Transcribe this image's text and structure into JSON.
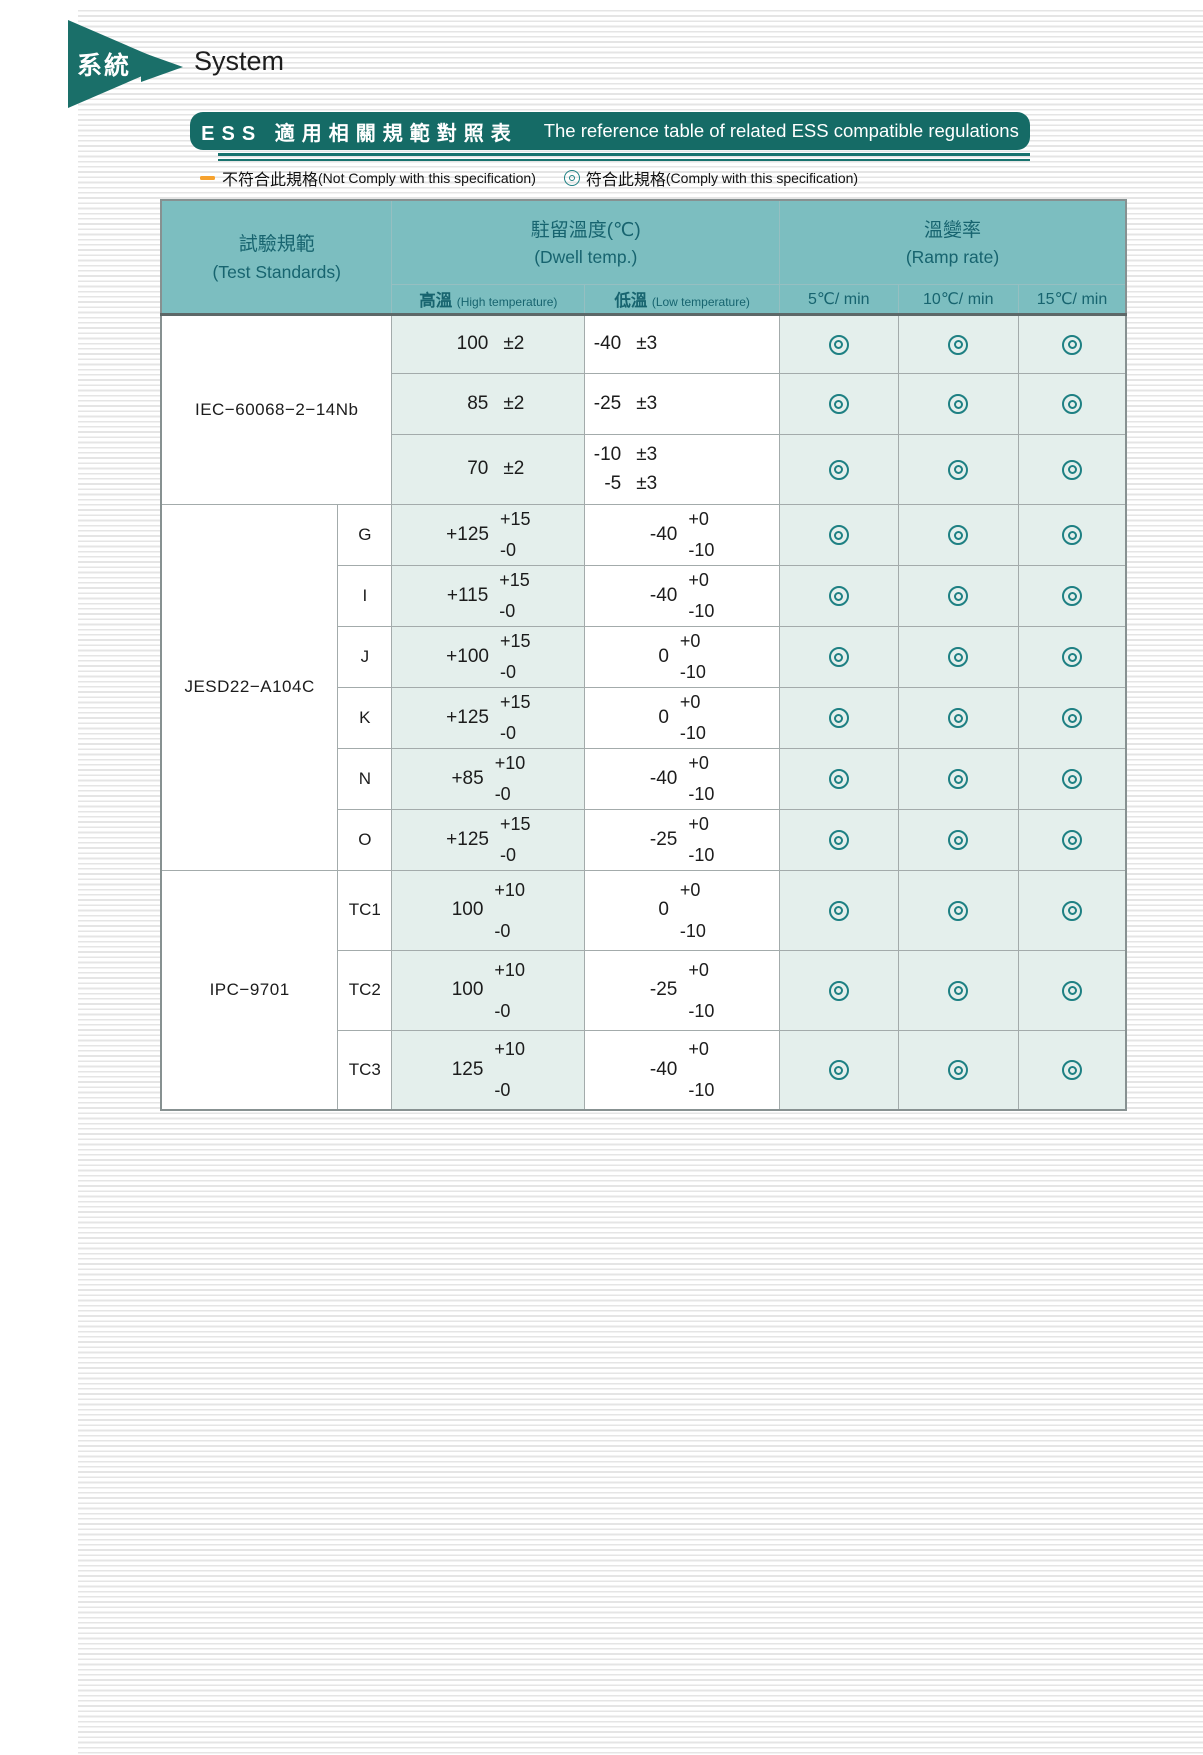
{
  "page": {
    "section_tab": {
      "zh": "系統",
      "en": "System"
    },
    "banner": {
      "zh": "ESS 適用相關規範對照表",
      "en": "The reference table of related ESS compatible regulations"
    },
    "legend": {
      "not_comply": {
        "symbol": "—",
        "zh": "不符合此規格",
        "en": "(Not Comply with this specification)"
      },
      "comply": {
        "symbol": "◎",
        "zh": "符合此規格",
        "en": "(Comply with this specification)"
      }
    },
    "colors": {
      "teal_dark": "#156b66",
      "teal_header_cell": "#7cbec0",
      "cell_green": "#e4efec",
      "circle_teal": "#1e8083",
      "legend_orange": "#f6a22e"
    }
  },
  "table": {
    "header": {
      "test_standards_zh": "試驗規範",
      "test_standards_en": "(Test Standards)",
      "dwell_zh": "駐留溫度(℃)",
      "dwell_en": "(Dwell temp.)",
      "ramp_zh": "溫變率",
      "ramp_en": "(Ramp rate)",
      "high_zh": "高溫",
      "high_en": "(High temperature)",
      "low_zh": "低溫",
      "low_en": "(Low temperature)",
      "ramp_cols": [
        "5℃/ min",
        "10℃/ min",
        "15℃/ min"
      ]
    },
    "groups": [
      {
        "standard": "IEC−60068−2−14Nb",
        "rows": [
          {
            "high": {
              "value": "100",
              "tol": "±2"
            },
            "low": {
              "entries": [
                {
                  "value": "-40",
                  "tol": "±3"
                }
              ]
            },
            "marks": [
              "◎",
              "◎",
              "◎"
            ]
          },
          {
            "high": {
              "value": "85",
              "tol": "±2"
            },
            "low": {
              "entries": [
                {
                  "value": "-25",
                  "tol": "±3"
                }
              ]
            },
            "marks": [
              "◎",
              "◎",
              "◎"
            ]
          },
          {
            "high": {
              "value": "70",
              "tol": "±2"
            },
            "low": {
              "entries": [
                {
                  "value": "-10",
                  "tol": "±3"
                },
                {
                  "value": "-5",
                  "tol": "±3"
                }
              ]
            },
            "marks": [
              "◎",
              "◎",
              "◎"
            ]
          }
        ]
      },
      {
        "standard": "JESD22−A104C",
        "rows": [
          {
            "variant": "G",
            "high": {
              "value": "+125",
              "plus": "+15",
              "minus": "-0"
            },
            "low": {
              "value": "-40",
              "plus": "+0",
              "minus": "-10"
            },
            "marks": [
              "◎",
              "◎",
              "◎"
            ]
          },
          {
            "variant": "I",
            "high": {
              "value": "+115",
              "plus": "+15",
              "minus": "-0"
            },
            "low": {
              "value": "-40",
              "plus": "+0",
              "minus": "-10"
            },
            "marks": [
              "◎",
              "◎",
              "◎"
            ]
          },
          {
            "variant": "J",
            "high": {
              "value": "+100",
              "plus": "+15",
              "minus": "-0"
            },
            "low": {
              "value": "0",
              "plus": "+0",
              "minus": "-10"
            },
            "marks": [
              "◎",
              "◎",
              "◎"
            ]
          },
          {
            "variant": "K",
            "high": {
              "value": "+125",
              "plus": "+15",
              "minus": "-0"
            },
            "low": {
              "value": "0",
              "plus": "+0",
              "minus": "-10"
            },
            "marks": [
              "◎",
              "◎",
              "◎"
            ]
          },
          {
            "variant": "N",
            "high": {
              "value": "+85",
              "plus": "+10",
              "minus": "-0"
            },
            "low": {
              "value": "-40",
              "plus": "+0",
              "minus": "-10"
            },
            "marks": [
              "◎",
              "◎",
              "◎"
            ]
          },
          {
            "variant": "O",
            "high": {
              "value": "+125",
              "plus": "+15",
              "minus": "-0"
            },
            "low": {
              "value": "-25",
              "plus": "+0",
              "minus": "-10"
            },
            "marks": [
              "◎",
              "◎",
              "◎"
            ]
          }
        ]
      },
      {
        "standard": "IPC−9701",
        "rows": [
          {
            "variant": "TC1",
            "high": {
              "value": "100",
              "plus": "+10",
              "minus": "-0"
            },
            "low": {
              "value": "0",
              "plus": "+0",
              "minus": "-10"
            },
            "marks": [
              "◎",
              "◎",
              "◎"
            ]
          },
          {
            "variant": "TC2",
            "high": {
              "value": "100",
              "plus": "+10",
              "minus": "-0"
            },
            "low": {
              "value": "-25",
              "plus": "+0",
              "minus": "-10"
            },
            "marks": [
              "◎",
              "◎",
              "◎"
            ]
          },
          {
            "variant": "TC3",
            "high": {
              "value": "125",
              "plus": "+10",
              "minus": "-0"
            },
            "low": {
              "value": "-40",
              "plus": "+0",
              "minus": "-10"
            },
            "marks": [
              "◎",
              "◎",
              "◎"
            ]
          }
        ]
      }
    ]
  }
}
